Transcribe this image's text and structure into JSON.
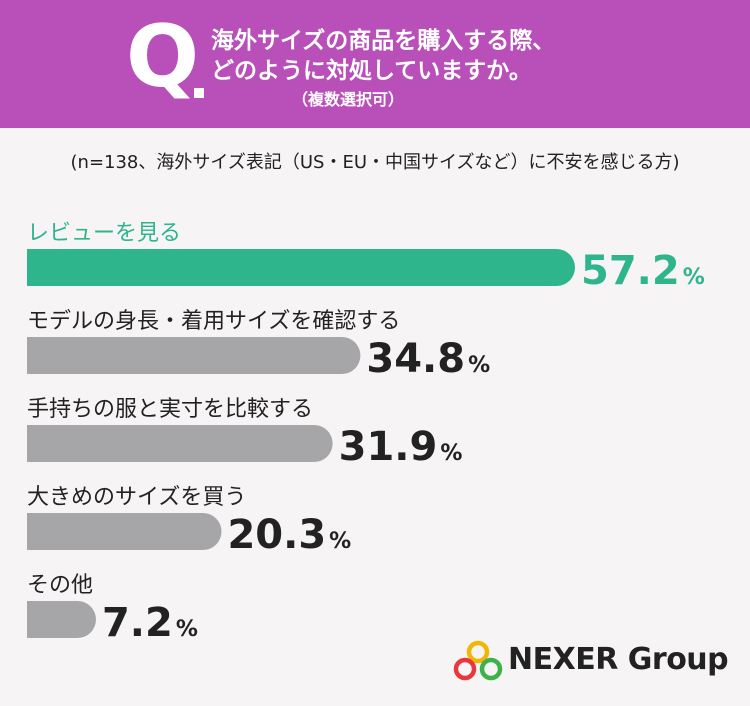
{
  "header": {
    "q_label": "Q",
    "question_line1": "海外サイズの商品を購入する際、",
    "question_line2": "どのように対処していますか。",
    "note": "（複数選択可）"
  },
  "sample_note": "(n=138、海外サイズ表記（US・EU・中国サイズなど）に不安を感じる方)",
  "colors": {
    "header": "#b94fb9",
    "highlight": "#2fb58c",
    "bar": "#a6a6a8",
    "text": "#222222",
    "background": "#f6f4f4"
  },
  "chart_data": {
    "type": "bar",
    "orientation": "horizontal",
    "categories": [
      "レビューを見る",
      "モデルの身長・着用サイズを確認する",
      "手持ちの服と実寸を比較する",
      "大きめのサイズを買う",
      "その他"
    ],
    "values": [
      57.2,
      34.8,
      31.9,
      20.3,
      7.2
    ],
    "value_labels": [
      "57.2",
      "34.8",
      "31.9",
      "20.3",
      "7.2"
    ],
    "unit": "%",
    "highlight_index": 0
  },
  "logo": {
    "text": "NEXER Group",
    "icon": "nexer-rings-icon"
  }
}
